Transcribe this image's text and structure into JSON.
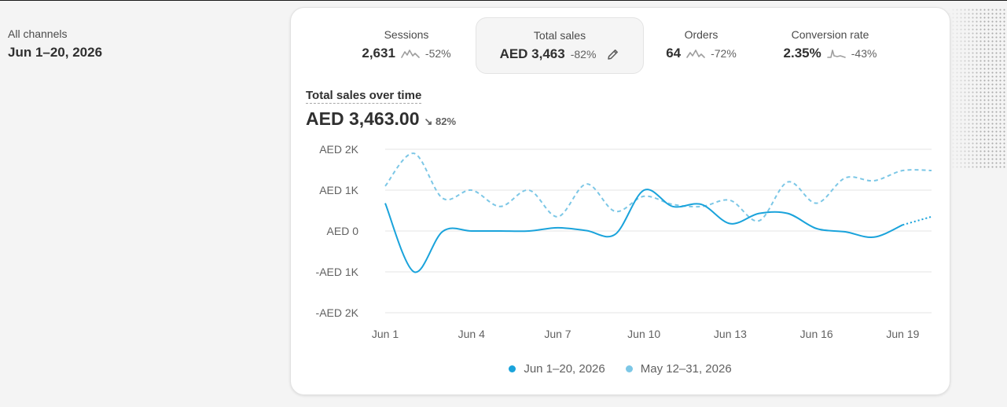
{
  "sidebar": {
    "channel": "All channels",
    "date_range": "Jun 1–20, 2026"
  },
  "metrics": [
    {
      "label": "Sessions",
      "value": "2,631",
      "change": "-52%"
    },
    {
      "label": "Total sales",
      "value": "AED 3,463",
      "change": "-82%"
    },
    {
      "label": "Orders",
      "value": "64",
      "change": "-72%"
    },
    {
      "label": "Conversion rate",
      "value": "2.35%",
      "change": "-43%"
    }
  ],
  "chart_header": {
    "title": "Total sales over time",
    "total": "AED 3,463.00",
    "change": "↘ 82%"
  },
  "colors": {
    "current": "#1aa3db",
    "previous": "#7cc7e6",
    "grid": "#e6e6e6"
  },
  "chart_data": {
    "type": "line",
    "y_ticks": [
      "AED 2K",
      "AED 1K",
      "AED 0",
      "-AED 1K",
      "-AED 2K"
    ],
    "ylim": [
      -2000,
      2000
    ],
    "x_ticks": [
      "Jun 1",
      "Jun 4",
      "Jun 7",
      "Jun 10",
      "Jun 13",
      "Jun 16",
      "Jun 19"
    ],
    "x_tick_index": [
      0,
      3,
      6,
      9,
      12,
      15,
      18
    ],
    "x_count": 20,
    "legend": [
      "Jun 1–20, 2026",
      "May 12–31, 2026"
    ],
    "series": [
      {
        "name": "Jun 1–20, 2026",
        "style": "solid",
        "values": [
          680,
          -1000,
          -10,
          0,
          0,
          0,
          80,
          10,
          -80,
          1000,
          600,
          650,
          180,
          430,
          430,
          60,
          -20,
          -150,
          150,
          350
        ],
        "partial_from": 18
      },
      {
        "name": "May 12–31, 2026",
        "style": "dashed",
        "values": [
          1100,
          1900,
          800,
          1000,
          600,
          1000,
          350,
          1150,
          480,
          850,
          650,
          600,
          750,
          250,
          1200,
          680,
          1300,
          1230,
          1480,
          1480
        ]
      }
    ]
  }
}
